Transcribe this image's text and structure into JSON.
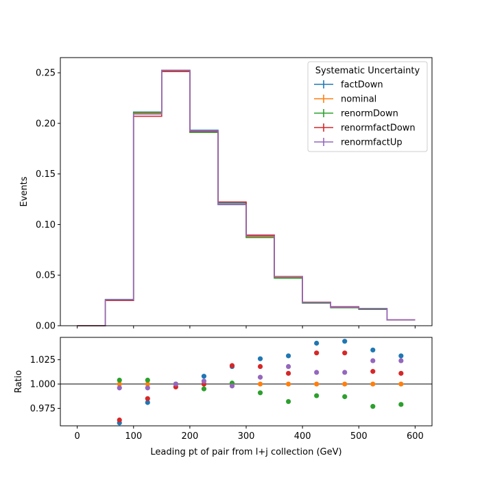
{
  "chart_data": [
    {
      "type": "line",
      "style": "step-histogram",
      "xlabel": "",
      "ylabel": "Events",
      "xlim": [
        -30,
        630
      ],
      "ylim": [
        0,
        0.265
      ],
      "bin_edges": [
        0,
        50,
        100,
        150,
        200,
        250,
        300,
        350,
        400,
        450,
        500,
        550,
        600
      ],
      "x_ticks": [
        0,
        100,
        200,
        300,
        400,
        500,
        600
      ],
      "y_ticks": [
        0.0,
        0.05,
        0.1,
        0.15,
        0.2,
        0.25
      ],
      "y_tick_labels": [
        "0.00",
        "0.05",
        "0.10",
        "0.15",
        "0.20",
        "0.25"
      ],
      "legend": {
        "title": "Systematic Uncertainty",
        "placement": "top-right"
      },
      "series": [
        {
          "name": "factDown",
          "color": "#1f77b4",
          "values": [
            0.0,
            0.0249,
            0.2112,
            0.2524,
            0.1932,
            0.1214,
            0.0888,
            0.0484,
            0.023,
            0.0188,
            0.017,
            0.0058
          ]
        },
        {
          "name": "nominal",
          "color": "#ff7f0e",
          "values": [
            0.0,
            0.0259,
            0.21,
            0.252,
            0.192,
            0.12,
            0.088,
            0.0479,
            0.0226,
            0.018,
            0.0165,
            0.0058
          ]
        },
        {
          "name": "renormDown",
          "color": "#2ca02c",
          "values": [
            0.0,
            0.026,
            0.2108,
            0.2521,
            0.1911,
            0.1201,
            0.0871,
            0.047,
            0.0223,
            0.0177,
            0.0161,
            0.0058
          ]
        },
        {
          "name": "renormfactDown",
          "color": "#d62728",
          "values": [
            0.0,
            0.025,
            0.207,
            0.2512,
            0.192,
            0.1223,
            0.0896,
            0.0484,
            0.0233,
            0.0186,
            0.0167,
            0.0058
          ]
        },
        {
          "name": "renormfactUp",
          "color": "#9467bd",
          "values": [
            0.0,
            0.0258,
            0.2092,
            0.2525,
            0.1926,
            0.1197,
            0.0887,
            0.0487,
            0.0229,
            0.0182,
            0.0169,
            0.0058
          ]
        }
      ]
    },
    {
      "type": "scatter",
      "xlabel": "Leading pt of pair from l+j collection (GeV)",
      "ylabel": "Ratio",
      "xlim": [
        -30,
        630
      ],
      "ylim": [
        0.957,
        1.048
      ],
      "x_ticks": [
        0,
        100,
        200,
        300,
        400,
        500,
        600
      ],
      "y_ticks": [
        0.975,
        1.0,
        1.025
      ],
      "y_tick_labels": [
        "0.975",
        "1.000",
        "1.025"
      ],
      "reference_line": 1.0,
      "x": [
        75,
        125,
        175,
        225,
        275,
        325,
        375,
        425,
        475,
        525,
        575
      ],
      "series": [
        {
          "name": "factDown",
          "color": "#1f77b4",
          "values": [
            0.96,
            0.981,
            1.0,
            1.008,
            1.018,
            1.026,
            1.029,
            1.042,
            1.044,
            1.035,
            1.029
          ]
        },
        {
          "name": "nominal",
          "color": "#ff7f0e",
          "values": [
            1.0,
            1.0,
            1.0,
            1.0,
            1.0,
            1.0,
            1.0,
            1.0,
            1.0,
            1.0,
            1.0
          ]
        },
        {
          "name": "renormDown",
          "color": "#2ca02c",
          "values": [
            1.004,
            1.004,
            1.0,
            0.995,
            1.001,
            0.991,
            0.982,
            0.988,
            0.987,
            0.977,
            0.979
          ]
        },
        {
          "name": "renormfactDown",
          "color": "#d62728",
          "values": [
            0.963,
            0.985,
            0.997,
            1.0,
            1.019,
            1.018,
            1.011,
            1.032,
            1.032,
            1.013,
            1.011
          ]
        },
        {
          "name": "renormfactUp",
          "color": "#9467bd",
          "values": [
            0.996,
            0.996,
            1.0,
            1.003,
            0.998,
            1.007,
            1.018,
            1.012,
            1.012,
            1.024,
            1.024
          ]
        }
      ]
    }
  ]
}
